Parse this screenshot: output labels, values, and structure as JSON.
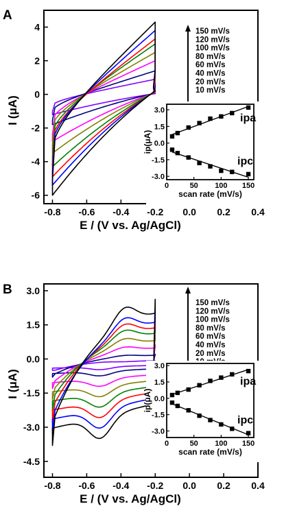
{
  "chart_data": [
    {
      "type": "line",
      "panel_label": "A",
      "xlabel": "E / (V vs. Ag/AgCl)",
      "ylabel": "I (μA)",
      "xlim": [
        -0.85,
        0.4
      ],
      "ylim": [
        -6.5,
        5
      ],
      "xticks": [
        "-0.8",
        "-0.6",
        "-0.4",
        "-0.2",
        "0.0",
        "0.2",
        "0.4"
      ],
      "yticks": [
        "-6",
        "-4",
        "-2",
        "0",
        "2",
        "4"
      ],
      "legend": {
        "placement": "top-right",
        "entries": [
          "150 mV/s",
          "120 mV/s",
          "100 mV/s",
          "80 mV/s",
          "60 mV/s",
          "40 mV/s",
          "20 mV/s",
          "10 mV/s"
        ]
      },
      "series": [
        {
          "color": "#000000",
          "ipa": 4.3,
          "ipc": -6.0
        },
        {
          "color": "#0000ff",
          "ipa": 3.8,
          "ipc": -5.4
        },
        {
          "color": "#ff0000",
          "ipa": 3.3,
          "ipc": -4.9
        },
        {
          "color": "#008000",
          "ipa": 3.0,
          "ipc": -4.3
        },
        {
          "color": "#808000",
          "ipa": 2.5,
          "ipc": -3.5
        },
        {
          "color": "#ff00ff",
          "ipa": 2.0,
          "ipc": -2.8
        },
        {
          "color": "#000080",
          "ipa": 1.4,
          "ipc": -1.8
        },
        {
          "color": "#8000ff",
          "ipa": 0.9,
          "ipc": -1.2
        }
      ],
      "inset": {
        "xlabel": "scan rate (mV/s)",
        "ylabel": "ip(μA)",
        "xlim": [
          0,
          160
        ],
        "ylim": [
          -3.3,
          3.5
        ],
        "xticks": [
          "0",
          "50",
          "100",
          "150"
        ],
        "yticks": [
          "-3.0",
          "-1.5",
          "0.0",
          "1.5",
          "3.0"
        ],
        "ipa_label": "ipa",
        "ipc_label": "ipc",
        "x": [
          10,
          20,
          40,
          60,
          80,
          100,
          120,
          150
        ],
        "ipa": [
          0.6,
          0.9,
          1.4,
          1.8,
          2.2,
          2.4,
          2.7,
          3.2
        ],
        "ipc": [
          -0.6,
          -0.9,
          -1.3,
          -1.8,
          -2.1,
          -2.5,
          -2.6,
          -2.8
        ]
      }
    },
    {
      "type": "line",
      "panel_label": "B",
      "xlabel": "E / (V vs. Ag/AgCl)",
      "ylabel": "I (μA)",
      "xlim": [
        -0.85,
        0.4
      ],
      "ylim": [
        -5.2,
        3.3
      ],
      "xticks": [
        "-0.8",
        "-0.6",
        "-0.4",
        "-0.2",
        "0.0",
        "0.2",
        "0.4"
      ],
      "yticks": [
        "-4.5",
        "-3.0",
        "-1.5",
        "0.0",
        "1.5",
        "3.0"
      ],
      "legend": {
        "placement": "top-right",
        "entries": [
          "150 mV/s",
          "120 mV/s",
          "100 mV/s",
          "80 mV/s",
          "60 mV/s",
          "40 mV/s",
          "20 mV/s",
          "10 mV/s"
        ]
      },
      "series": [
        {
          "color": "#000000",
          "ipa": 2.5,
          "ipc": -3.8
        },
        {
          "color": "#0000ff",
          "ipa": 2.0,
          "ipc": -3.3
        },
        {
          "color": "#ff0000",
          "ipa": 1.7,
          "ipc": -2.8
        },
        {
          "color": "#008000",
          "ipa": 1.4,
          "ipc": -2.3
        },
        {
          "color": "#808000",
          "ipa": 1.0,
          "ipc": -1.8
        },
        {
          "color": "#ff00ff",
          "ipa": 0.6,
          "ipc": -1.3
        },
        {
          "color": "#000080",
          "ipa": 0.2,
          "ipc": -0.8
        },
        {
          "color": "#8000ff",
          "ipa": -0.1,
          "ipc": -0.5
        }
      ],
      "inset": {
        "xlabel": "scan rate (mV/s)",
        "ylabel": "ip(μA)",
        "xlim": [
          0,
          160
        ],
        "ylim": [
          -3.6,
          3.2
        ],
        "xticks": [
          "0",
          "50",
          "100",
          "150"
        ],
        "yticks": [
          "-3.0",
          "-1.5",
          "0.0",
          "1.5",
          "3.0"
        ],
        "ipa_label": "ipa",
        "ipc_label": "ipc",
        "x": [
          10,
          20,
          40,
          60,
          80,
          100,
          120,
          150
        ],
        "ipa": [
          0.3,
          0.5,
          0.8,
          1.2,
          1.6,
          1.9,
          2.2,
          2.5
        ],
        "ipc": [
          -0.4,
          -0.7,
          -1.1,
          -1.6,
          -2.0,
          -2.4,
          -2.8,
          -3.2
        ]
      }
    }
  ]
}
